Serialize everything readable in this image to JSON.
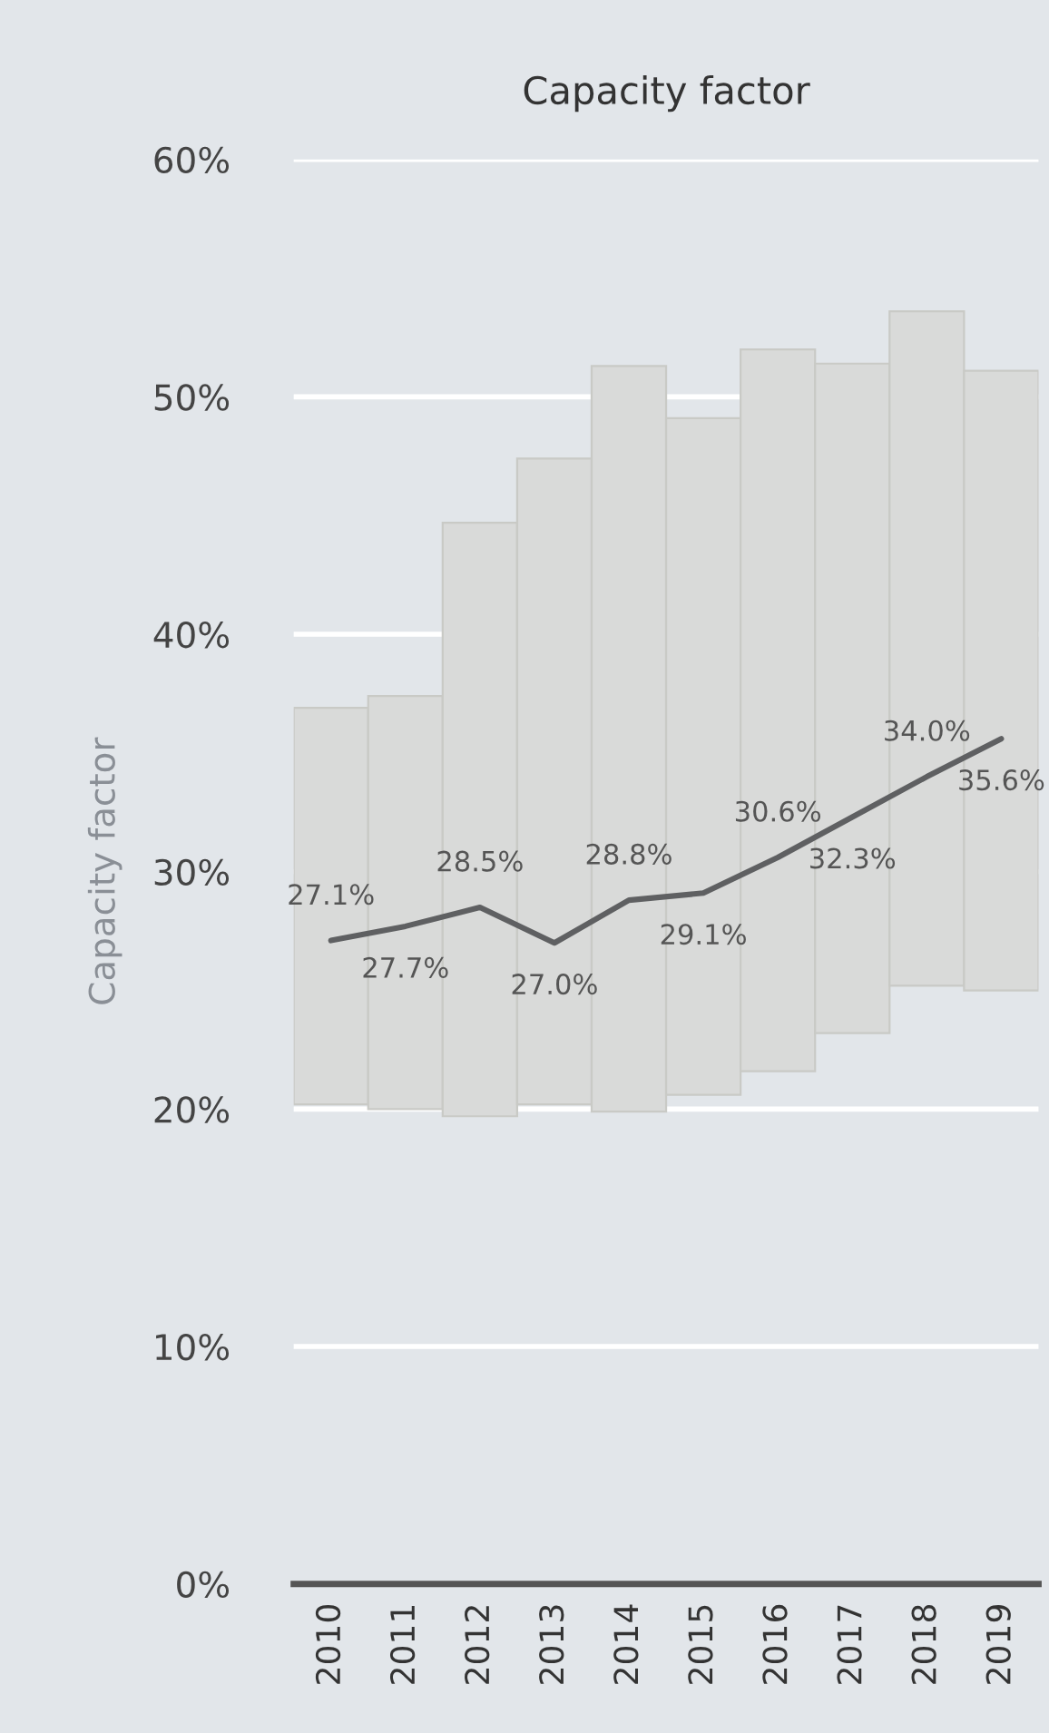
{
  "chart_data": {
    "type": "bar",
    "title": "Capacity factor",
    "ylabel": "Capacity factor",
    "categories": [
      "2010",
      "2011",
      "2012",
      "2013",
      "2014",
      "2015",
      "2016",
      "2017",
      "2018",
      "2019"
    ],
    "series": [
      {
        "color": "#d9dad9",
        "base": [
          20.2,
          20.0,
          19.7,
          20.2,
          19.9,
          20.6,
          21.6,
          23.2,
          25.2,
          25.0
        ],
        "values": [
          16.7,
          17.4,
          25.0,
          27.2,
          31.4,
          28.5,
          30.4,
          28.2,
          28.4,
          26.1
        ]
      },
      {
        "type": "line",
        "color": "#5f6062",
        "values": [
          27.1,
          27.7,
          28.5,
          27.0,
          28.8,
          29.1,
          30.6,
          32.3,
          34.0,
          35.6
        ],
        "value_labels": [
          "27.1%",
          "27.7%",
          "28.5%",
          "27.0%",
          "28.8%",
          "29.1%",
          "30.6%",
          "32.3%",
          "34.0%",
          "35.6%"
        ]
      }
    ],
    "ylim": [
      0,
      60
    ],
    "yticks": [
      {
        "value": 0,
        "label": "0%"
      },
      {
        "value": 10,
        "label": "10%"
      },
      {
        "value": 20,
        "label": "20%"
      },
      {
        "value": 30,
        "label": "30%"
      },
      {
        "value": 40,
        "label": "40%"
      },
      {
        "value": 50,
        "label": "50%"
      },
      {
        "value": 60,
        "label": "60%"
      }
    ],
    "grid": "y",
    "legend": false,
    "marker": "none",
    "line_style": "solid"
  }
}
